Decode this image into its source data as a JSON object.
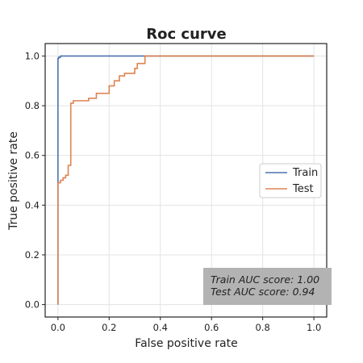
{
  "chart_data": {
    "type": "line",
    "title": "Roc curve",
    "xlabel": "False positive rate",
    "ylabel": "True positive rate",
    "xlim": [
      -0.05,
      1.05
    ],
    "ylim": [
      -0.05,
      1.05
    ],
    "xticks": [
      "0.0",
      "0.2",
      "0.4",
      "0.6",
      "0.8",
      "1.0"
    ],
    "yticks": [
      "0.0",
      "0.2",
      "0.4",
      "0.6",
      "0.8",
      "1.0"
    ],
    "grid": true,
    "legend_position": "center-right",
    "series": [
      {
        "name": "Train",
        "color": "#4c72b0",
        "x": [
          0.0,
          0.0,
          0.003,
          0.003,
          0.01,
          0.01,
          1.0
        ],
        "y": [
          0.0,
          0.99,
          0.99,
          0.995,
          0.995,
          1.0,
          1.0
        ]
      },
      {
        "name": "Test",
        "color": "#dd8452",
        "x": [
          0.0,
          0.0,
          0.01,
          0.01,
          0.02,
          0.02,
          0.03,
          0.03,
          0.04,
          0.04,
          0.05,
          0.05,
          0.06,
          0.06,
          0.12,
          0.12,
          0.15,
          0.15,
          0.2,
          0.2,
          0.22,
          0.22,
          0.24,
          0.24,
          0.26,
          0.26,
          0.3,
          0.3,
          0.31,
          0.31,
          0.34,
          0.34,
          1.0
        ],
        "y": [
          0.0,
          0.49,
          0.49,
          0.5,
          0.5,
          0.51,
          0.51,
          0.52,
          0.52,
          0.56,
          0.56,
          0.81,
          0.81,
          0.82,
          0.82,
          0.83,
          0.83,
          0.85,
          0.85,
          0.88,
          0.88,
          0.9,
          0.9,
          0.92,
          0.92,
          0.93,
          0.93,
          0.95,
          0.95,
          0.97,
          0.97,
          1.0,
          1.0
        ]
      }
    ],
    "annotations": [
      "Train AUC score: 1.00",
      "Test AUC score: 0.94"
    ]
  }
}
